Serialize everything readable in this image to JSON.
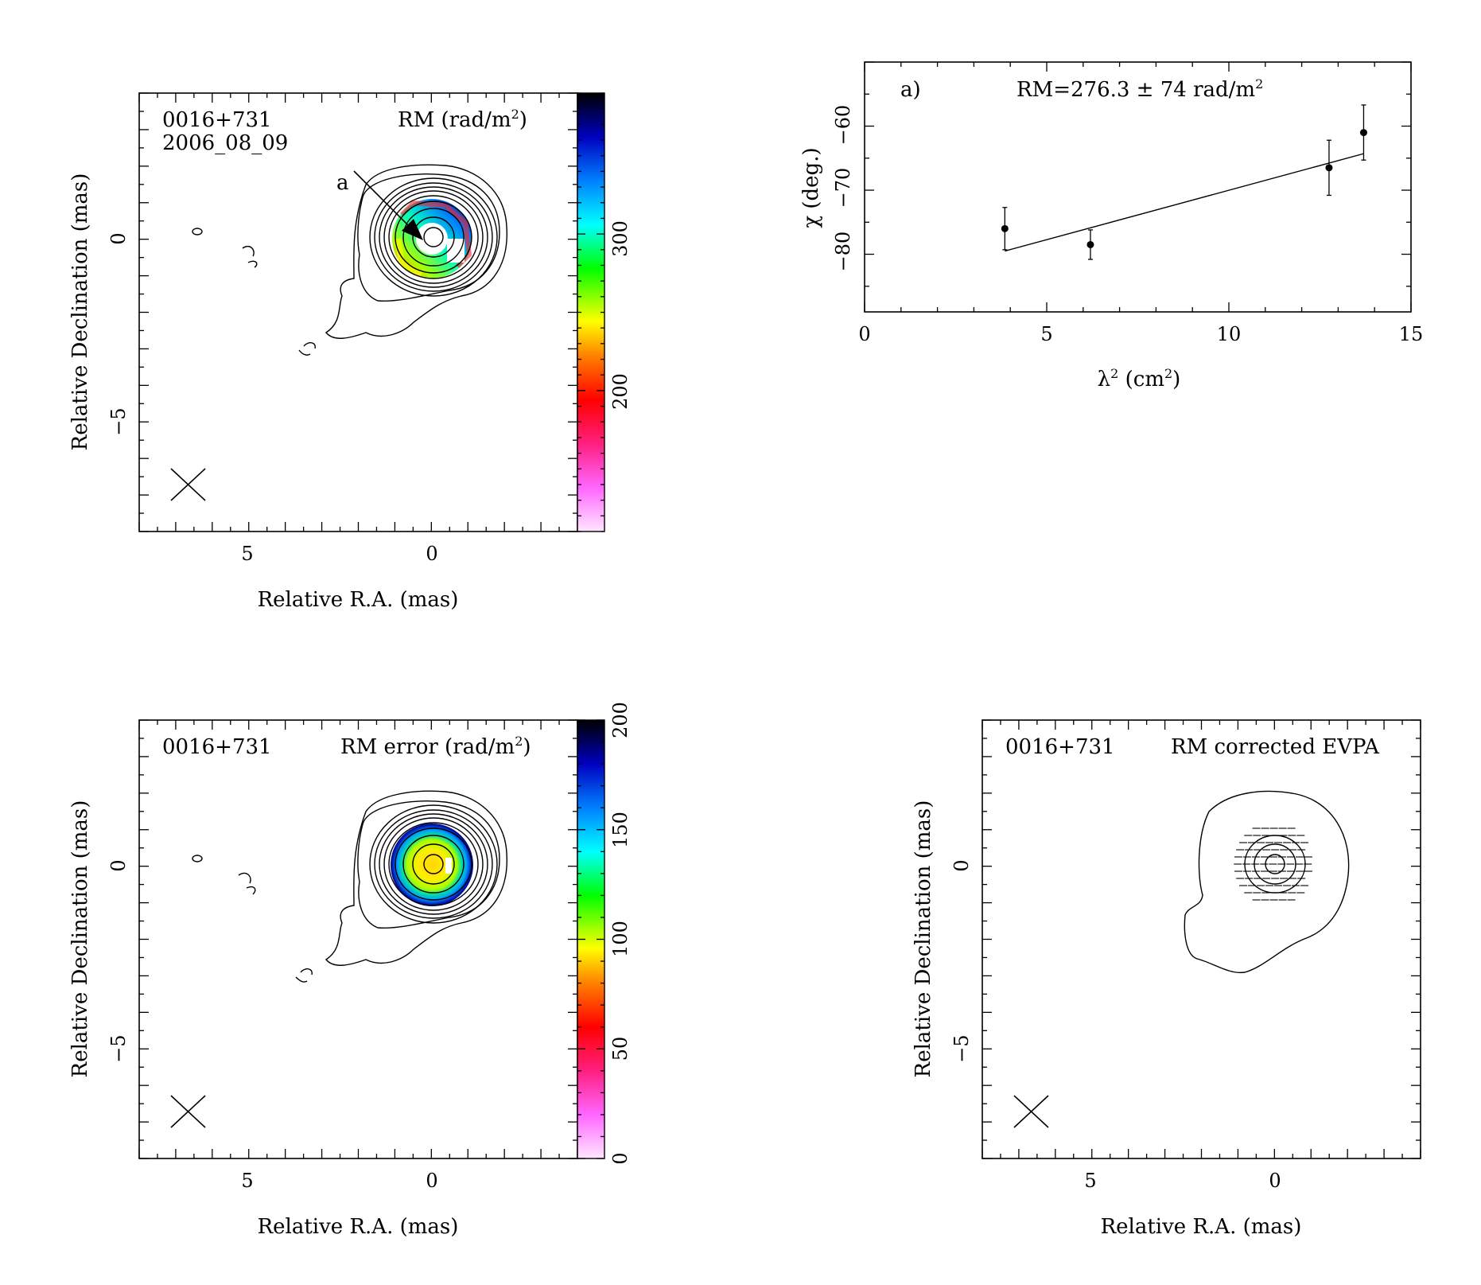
{
  "panels": {
    "rm_map": {
      "source": "0016+731",
      "epoch": "2006_08_09",
      "label_main": "RM (rad/m",
      "label_sup": "2",
      "label_tail": ")",
      "xlabel": "Relative R.A. (mas)",
      "ylabel": "Relative Declination (mas)",
      "x_ticks": [
        "5",
        "0"
      ],
      "y_ticks": [
        "0",
        "−5"
      ],
      "colorbar_ticks": [
        "200",
        "300"
      ],
      "pointer_label": "a"
    },
    "rm_error": {
      "source": "0016+731",
      "label_main": "RM error (rad/m",
      "label_sup": "2",
      "label_tail": ")",
      "xlabel": "Relative R.A. (mas)",
      "ylabel": "Relative Declination (mas)",
      "x_ticks": [
        "5",
        "0"
      ],
      "y_ticks": [
        "0",
        "−5"
      ],
      "colorbar_ticks": [
        "0",
        "50",
        "100",
        "150",
        "200"
      ]
    },
    "evpa": {
      "source": "0016+731",
      "label": "RM corrected EVPA",
      "xlabel": "Relative R.A. (mas)",
      "ylabel": "Relative Declination (mas)",
      "x_ticks": [
        "5",
        "0"
      ],
      "y_ticks": [
        "0",
        "−5"
      ]
    },
    "fit": {
      "tag": "a)",
      "rm_text": "RM=276.3 ± 74 rad/m",
      "rm_sup": "2",
      "xlabel_main": "λ",
      "xlabel_sup": "2",
      "xlabel_tail": " (cm",
      "xlabel_sup2": "2",
      "xlabel_end": ")",
      "ylabel": "χ (deg.)",
      "x_ticks": [
        "0",
        "5",
        "10",
        "15"
      ],
      "y_ticks": [
        "−80",
        "−70",
        "−60"
      ]
    }
  },
  "chart_data": [
    {
      "type": "heatmap",
      "title": "RM (rad/m2)",
      "xlabel": "Relative R.A. (mas)",
      "ylabel": "Relative Declination (mas)",
      "xlim": [
        8,
        -4
      ],
      "ylim": [
        -8,
        4
      ],
      "colorbar_range": [
        110,
        390
      ],
      "core_center_mas": [
        0,
        0
      ],
      "core_rm_values": [
        150,
        200,
        250,
        300,
        350
      ]
    },
    {
      "type": "heatmap",
      "title": "RM error (rad/m2)",
      "xlabel": "Relative R.A. (mas)",
      "ylabel": "Relative Declination (mas)",
      "xlim": [
        8,
        -4
      ],
      "ylim": [
        -8,
        4
      ],
      "colorbar_range": [
        0,
        200
      ]
    },
    {
      "type": "scatter",
      "title": "",
      "xlabel": "λ2 (cm2)",
      "ylabel": "χ (deg.)",
      "xlim": [
        0,
        15
      ],
      "ylim": [
        -89,
        -50
      ],
      "points": [
        {
          "x": 3.85,
          "y": -76.0,
          "err": 3.3
        },
        {
          "x": 6.2,
          "y": -78.5,
          "err": 2.3
        },
        {
          "x": 12.75,
          "y": -66.5,
          "err": 4.3
        },
        {
          "x": 13.7,
          "y": -61.0,
          "err": 4.3
        }
      ],
      "fit_line": {
        "x": [
          3.85,
          13.7
        ],
        "y": [
          -79.5,
          -64.3
        ]
      },
      "rm": "276.3 ± 74"
    }
  ]
}
